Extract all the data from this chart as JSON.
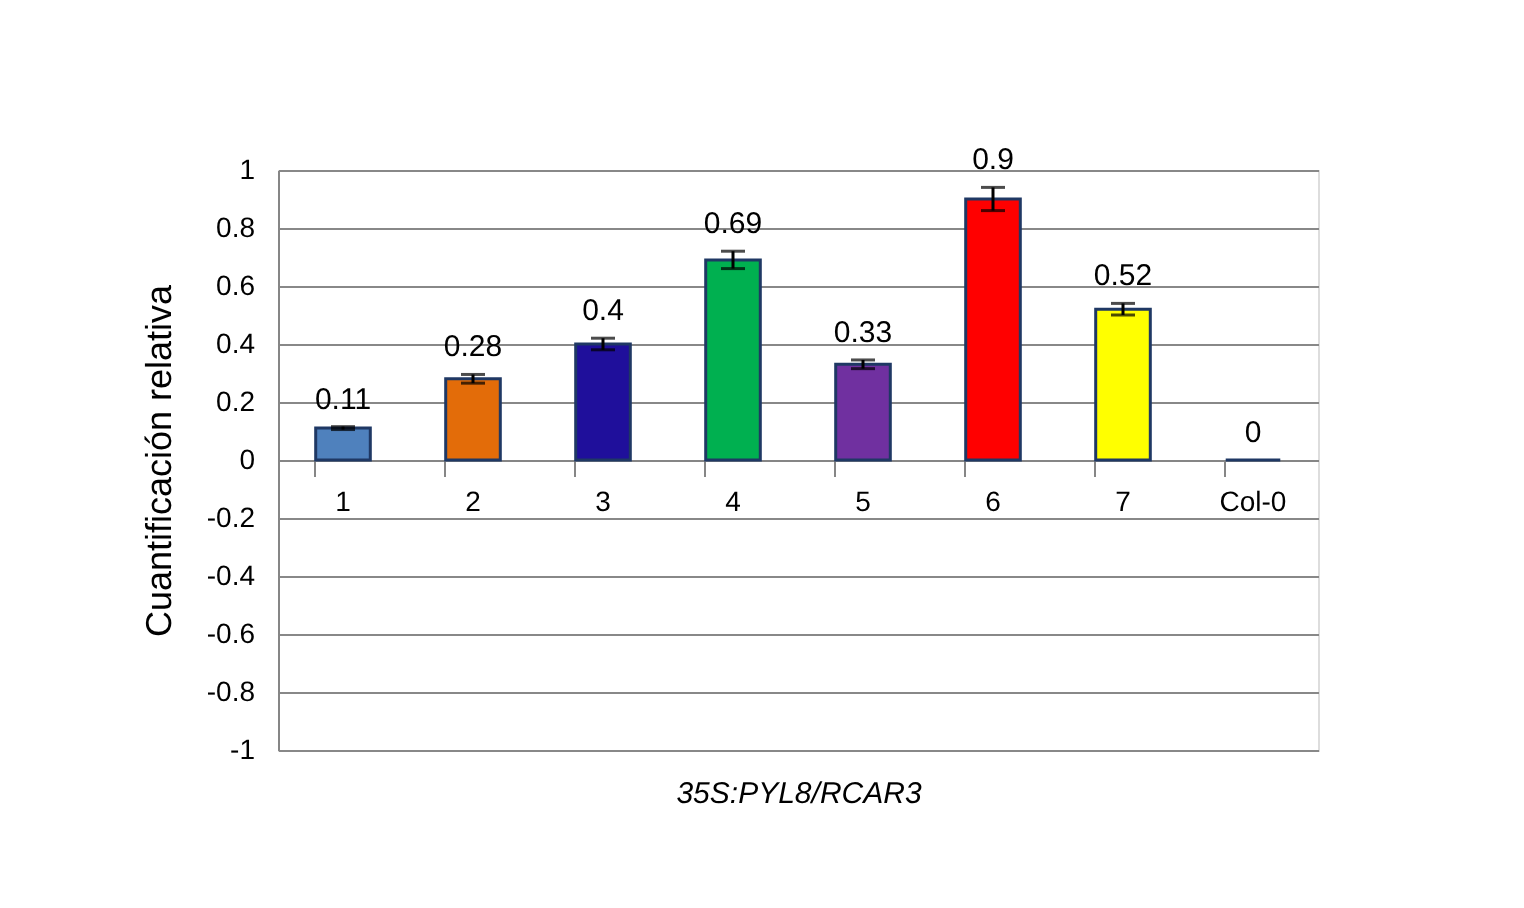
{
  "chart_data": {
    "type": "bar",
    "xlabel": "35S:PYL8/RCAR3",
    "ylabel": "Cuantificación relativa",
    "categories": [
      "1",
      "2",
      "3",
      "4",
      "5",
      "6",
      "7",
      "Col-0"
    ],
    "values": [
      0.11,
      0.28,
      0.4,
      0.69,
      0.33,
      0.9,
      0.52,
      0
    ],
    "errors": [
      0.005,
      0.015,
      0.02,
      0.03,
      0.015,
      0.04,
      0.02,
      null
    ],
    "colors": [
      "#4f81bd",
      "#e36c09",
      "#1f0f9b",
      "#00b050",
      "#7030a0",
      "#ff0000",
      "#ffff00",
      "#1f3864"
    ],
    "ylim": [
      -1,
      1
    ],
    "yticks": [
      -1,
      -0.8,
      -0.6,
      -0.4,
      -0.2,
      0,
      0.2,
      0.4,
      0.6,
      0.8,
      1
    ],
    "grid": "y",
    "data_labels": true
  }
}
